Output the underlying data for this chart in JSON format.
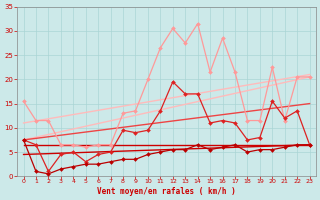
{
  "xlabel": "Vent moyen/en rafales ( km/h )",
  "xlim": [
    0,
    23
  ],
  "ylim": [
    0,
    35
  ],
  "yticks": [
    0,
    5,
    10,
    15,
    20,
    25,
    30,
    35
  ],
  "xticks": [
    0,
    1,
    2,
    3,
    4,
    5,
    6,
    7,
    8,
    9,
    10,
    11,
    12,
    13,
    14,
    15,
    16,
    17,
    18,
    19,
    20,
    21,
    22,
    23
  ],
  "background_color": "#cce9e9",
  "grid_color": "#aad5d5",
  "series": [
    {
      "x": [
        0,
        1,
        2,
        3,
        4,
        5,
        6,
        7,
        8,
        9,
        10,
        11,
        12,
        13,
        14,
        15,
        16,
        17,
        18,
        19,
        20,
        21,
        22,
        23
      ],
      "y": [
        15.5,
        11.5,
        11.5,
        6.5,
        6.5,
        6.0,
        6.5,
        6.5,
        13.0,
        13.5,
        20.0,
        26.5,
        30.5,
        27.5,
        31.5,
        21.5,
        28.5,
        21.5,
        11.5,
        11.5,
        22.5,
        11.5,
        20.5,
        20.5
      ],
      "color": "#ff9999",
      "marker": "D",
      "markersize": 2.0,
      "linewidth": 0.9,
      "zorder": 3
    },
    {
      "x": [
        0,
        1,
        2,
        3,
        4,
        5,
        6,
        7,
        8,
        9,
        10,
        11,
        12,
        13,
        14,
        15,
        16,
        17,
        18,
        19,
        20,
        21,
        22,
        23
      ],
      "y": [
        7.5,
        6.5,
        1.0,
        4.5,
        5.0,
        3.0,
        4.5,
        5.0,
        9.5,
        9.0,
        9.5,
        13.5,
        19.5,
        17.0,
        17.0,
        11.0,
        11.5,
        11.0,
        7.5,
        8.0,
        15.5,
        12.0,
        13.5,
        6.5
      ],
      "color": "#dd2222",
      "marker": "D",
      "markersize": 2.0,
      "linewidth": 0.9,
      "zorder": 4
    },
    {
      "x": [
        0,
        1,
        2,
        3,
        4,
        5,
        6,
        7,
        8,
        9,
        10,
        11,
        12,
        13,
        14,
        15,
        16,
        17,
        18,
        19,
        20,
        21,
        22,
        23
      ],
      "y": [
        7.5,
        1.0,
        0.5,
        1.5,
        2.0,
        2.5,
        2.5,
        3.0,
        3.5,
        3.5,
        4.5,
        5.0,
        5.5,
        5.5,
        6.5,
        5.5,
        6.0,
        6.5,
        5.0,
        5.5,
        5.5,
        6.0,
        6.5,
        6.5
      ],
      "color": "#bb0000",
      "marker": "D",
      "markersize": 2.0,
      "linewidth": 0.9,
      "zorder": 4
    },
    {
      "x": [
        0,
        23
      ],
      "y": [
        11.0,
        21.0
      ],
      "color": "#ffbbbb",
      "marker": null,
      "linewidth": 1.0,
      "zorder": 2
    },
    {
      "x": [
        0,
        23
      ],
      "y": [
        7.5,
        20.5
      ],
      "color": "#ffbbbb",
      "marker": null,
      "linewidth": 1.0,
      "zorder": 2
    },
    {
      "x": [
        0,
        23
      ],
      "y": [
        7.5,
        15.0
      ],
      "color": "#ee4444",
      "marker": null,
      "linewidth": 1.0,
      "zorder": 2
    },
    {
      "x": [
        0,
        23
      ],
      "y": [
        6.5,
        6.5
      ],
      "color": "#cc0000",
      "marker": null,
      "linewidth": 1.0,
      "zorder": 2
    },
    {
      "x": [
        0,
        23
      ],
      "y": [
        4.5,
        6.5
      ],
      "color": "#cc0000",
      "marker": null,
      "linewidth": 1.0,
      "zorder": 2
    }
  ]
}
